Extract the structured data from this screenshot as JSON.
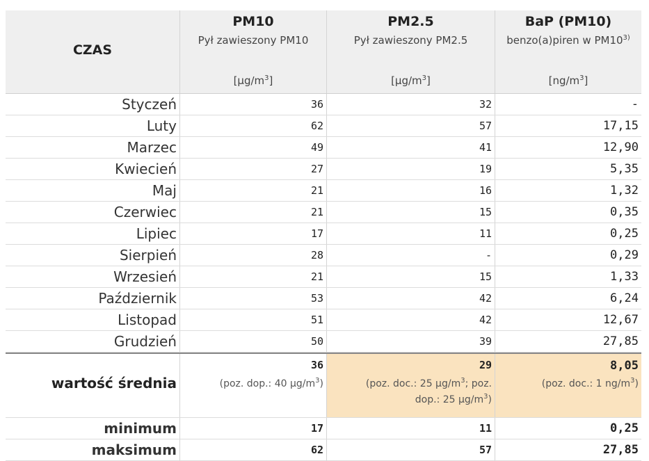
{
  "header": {
    "time_label": "CZAS",
    "columns": [
      {
        "name": "PM10",
        "desc": "Pył zawieszony PM10",
        "unit_main": "[µg/m",
        "unit_sup": "3",
        "unit_end": "]"
      },
      {
        "name": "PM2.5",
        "desc": "Pył zawieszony PM2.5",
        "unit_main": "[µg/m",
        "unit_sup": "3",
        "unit_end": "]"
      },
      {
        "name": "BaP (PM10)",
        "desc": "benzo(a)piren w PM10",
        "desc_sup": "3)",
        "unit_main": "[ng/m",
        "unit_sup": "3",
        "unit_end": "]"
      }
    ]
  },
  "rows": [
    {
      "month": "Styczeń",
      "pm10": "36",
      "pm25": "32",
      "bap": "-"
    },
    {
      "month": "Luty",
      "pm10": "62",
      "pm25": "57",
      "bap": "17,15"
    },
    {
      "month": "Marzec",
      "pm10": "49",
      "pm25": "41",
      "bap": "12,90"
    },
    {
      "month": "Kwiecień",
      "pm10": "27",
      "pm25": "19",
      "bap": "5,35"
    },
    {
      "month": "Maj",
      "pm10": "21",
      "pm25": "16",
      "bap": "1,32"
    },
    {
      "month": "Czerwiec",
      "pm10": "21",
      "pm25": "15",
      "bap": "0,35"
    },
    {
      "month": "Lipiec",
      "pm10": "17",
      "pm25": "11",
      "bap": "0,25"
    },
    {
      "month": "Sierpień",
      "pm10": "28",
      "pm25": "-",
      "bap": "0,29"
    },
    {
      "month": "Wrzesień",
      "pm10": "21",
      "pm25": "15",
      "bap": "1,33"
    },
    {
      "month": "Październik",
      "pm10": "53",
      "pm25": "42",
      "bap": "6,24"
    },
    {
      "month": "Listopad",
      "pm10": "51",
      "pm25": "42",
      "bap": "12,67"
    },
    {
      "month": "Grudzień",
      "pm10": "50",
      "pm25": "39",
      "bap": "27,85"
    }
  ],
  "average": {
    "label": "wartość średnia",
    "pm10": "36",
    "pm10_note_a": "(poz. dop.: 40 µg/m",
    "pm10_note_sup": "3",
    "pm10_note_b": ")",
    "pm25": "29",
    "pm25_note_a": "(poz. doc.: 25 µg/m",
    "pm25_note_sup1": "3",
    "pm25_note_b": "; poz. dop.: 25 µg/m",
    "pm25_note_sup2": "3",
    "pm25_note_c": ")",
    "bap": "8,05",
    "bap_note_a": "(poz. doc.: 1 ng/m",
    "bap_note_sup": "3",
    "bap_note_b": ")"
  },
  "minimum": {
    "label": "minimum",
    "pm10": "17",
    "pm25": "11",
    "bap": "0,25"
  },
  "maximum": {
    "label": "maksimum",
    "pm10": "62",
    "pm25": "57",
    "bap": "27,85"
  },
  "colors": {
    "header_bg": "#efefef",
    "highlight_bg": "#fae3bf"
  }
}
